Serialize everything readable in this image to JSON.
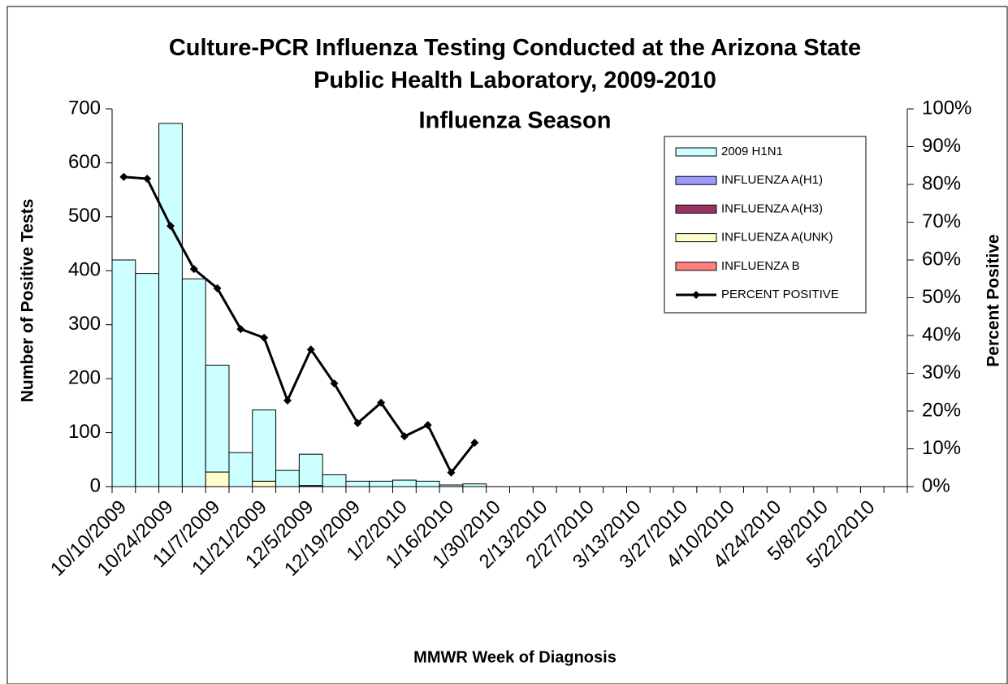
{
  "chart_data": {
    "type": "bar",
    "title": "Culture-PCR Influenza Testing Conducted at the Arizona State Public Health Laboratory, 2009-2010",
    "subtitle": "Influenza Season",
    "y_label": "Number of Positive Tests",
    "y2_label": "Percent Positive",
    "x_label": "MMWR Week of Diagnosis",
    "categories": [
      "10/10/2009",
      null,
      "10/24/2009",
      null,
      "11/7/2009",
      null,
      "11/21/2009",
      null,
      "12/5/2009",
      null,
      "12/19/2009",
      null,
      "1/2/2010",
      null,
      "1/16/2010",
      null,
      "1/30/2010",
      null,
      "2/13/2010",
      null,
      "2/27/2010",
      null,
      "3/13/2010",
      null,
      "3/27/2010",
      null,
      "4/10/2010",
      null,
      "4/24/2010",
      null,
      "5/8/2010",
      null,
      "5/22/2010",
      null
    ],
    "ylim": [
      0,
      700
    ],
    "yticks": [
      0,
      100,
      200,
      300,
      400,
      500,
      600,
      700
    ],
    "y2lim": [
      0,
      100
    ],
    "y2ticks": [
      {
        "value": 0,
        "label": "0%"
      },
      {
        "value": 10,
        "label": "10%"
      },
      {
        "value": 20,
        "label": "20%"
      },
      {
        "value": 30,
        "label": "30%"
      },
      {
        "value": 40,
        "label": "40%"
      },
      {
        "value": 50,
        "label": "50%"
      },
      {
        "value": 60,
        "label": "60%"
      },
      {
        "value": 70,
        "label": "70%"
      },
      {
        "value": 80,
        "label": "80%"
      },
      {
        "value": 90,
        "label": "90%"
      },
      {
        "value": 100,
        "label": "100%"
      }
    ],
    "legend": "right",
    "series": [
      {
        "name": "2009 H1N1",
        "color": "#ccffff",
        "values": [
          420,
          395,
          673,
          385,
          198,
          63,
          132,
          30,
          58,
          22,
          10,
          10,
          12,
          10,
          3,
          5,
          null,
          null,
          null,
          null,
          null,
          null,
          null,
          null,
          null,
          null,
          null,
          null,
          null,
          null,
          null,
          null,
          null,
          null
        ]
      },
      {
        "name": "INFLUENZA A(H1)",
        "color": "#9999ff",
        "values": [
          0,
          0,
          0,
          0,
          0,
          0,
          0,
          0,
          0,
          0,
          0,
          0,
          0,
          0,
          0,
          0,
          null,
          null,
          null,
          null,
          null,
          null,
          null,
          null,
          null,
          null,
          null,
          null,
          null,
          null,
          null,
          null,
          null,
          null
        ]
      },
      {
        "name": "INFLUENZA A(H3)",
        "color": "#993366",
        "values": [
          0,
          0,
          0,
          0,
          0,
          0,
          0,
          0,
          2,
          0,
          0,
          0,
          0,
          0,
          0,
          0,
          null,
          null,
          null,
          null,
          null,
          null,
          null,
          null,
          null,
          null,
          null,
          null,
          null,
          null,
          null,
          null,
          null,
          null
        ]
      },
      {
        "name": "INFLUENZA A(UNK)",
        "color": "#ffffcc",
        "values": [
          0,
          0,
          0,
          0,
          27,
          0,
          10,
          0,
          0,
          0,
          0,
          0,
          0,
          0,
          0,
          0,
          null,
          null,
          null,
          null,
          null,
          null,
          null,
          null,
          null,
          null,
          null,
          null,
          null,
          null,
          null,
          null,
          null,
          null
        ]
      },
      {
        "name": "INFLUENZA B",
        "color": "#ff8080",
        "values": [
          0,
          0,
          0,
          0,
          0,
          0,
          0,
          0,
          0,
          0,
          0,
          0,
          0,
          0,
          0,
          0,
          null,
          null,
          null,
          null,
          null,
          null,
          null,
          null,
          null,
          null,
          null,
          null,
          null,
          null,
          null,
          null,
          null,
          null
        ]
      },
      {
        "name": "PERCENT POSITIVE",
        "color": "#000000",
        "type": "line",
        "axis": "y2",
        "values": [
          82,
          81.5,
          69,
          57.6,
          52.5,
          41.7,
          39.4,
          22.8,
          36.3,
          27.3,
          16.8,
          22.2,
          13.3,
          16.3,
          3.7,
          11.6,
          null,
          null,
          null,
          null,
          null,
          null,
          null,
          null,
          null,
          null,
          null,
          null,
          null,
          null,
          null,
          null,
          null,
          null
        ]
      }
    ]
  }
}
